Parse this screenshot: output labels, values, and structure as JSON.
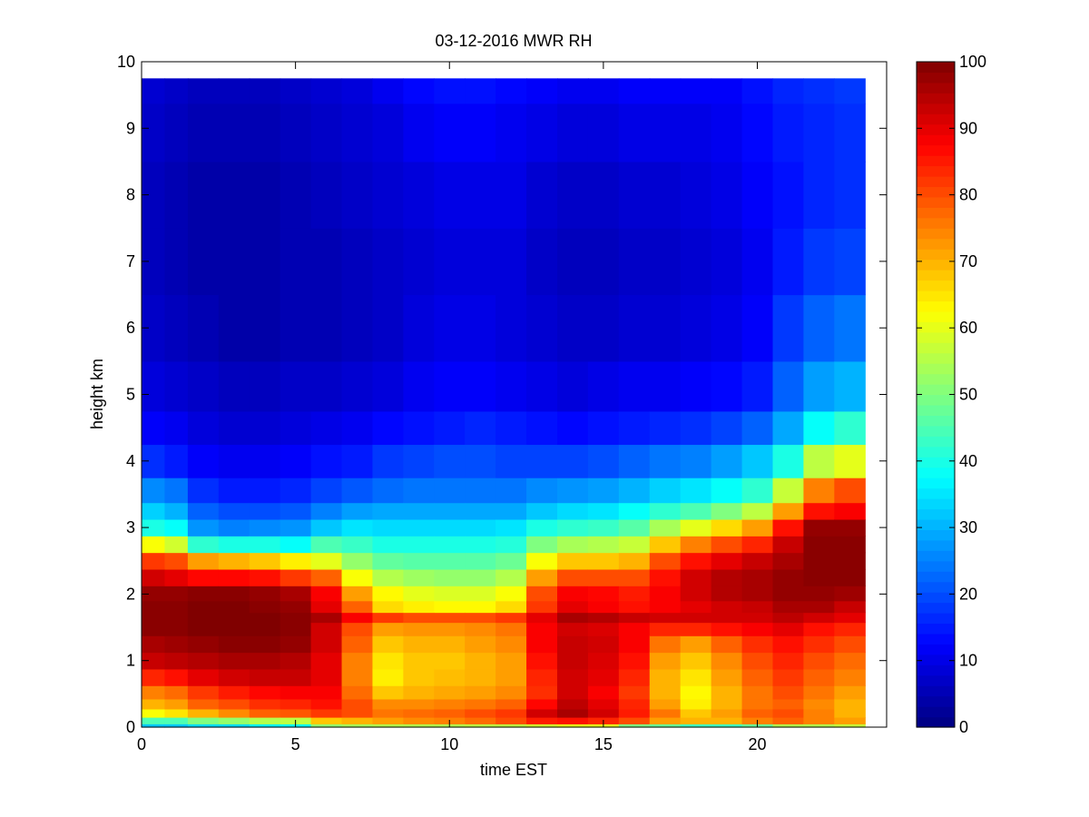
{
  "chart_data": {
    "type": "heatmap",
    "title": "03-12-2016 MWR RH",
    "xlabel": "time EST",
    "ylabel": "height km",
    "xlim": [
      0,
      24.2
    ],
    "ylim": [
      0,
      10
    ],
    "x_ticks": [
      0,
      5,
      10,
      15,
      20
    ],
    "y_ticks": [
      0,
      1,
      2,
      3,
      4,
      5,
      6,
      7,
      8,
      9,
      10
    ],
    "colormap": "jet",
    "color_range": [
      0,
      100
    ],
    "colorbar_ticks": [
      0,
      10,
      20,
      30,
      40,
      50,
      60,
      70,
      80,
      90,
      100
    ],
    "colorbar_placement": "right",
    "time_bins_start": [
      0,
      0.75,
      1.5,
      2.5,
      3.5,
      4.5,
      5.5,
      6.5,
      7.5,
      8.5,
      9.5,
      10.5,
      11.5,
      12.5,
      13.5,
      14.5,
      15.5,
      16.5,
      17.5,
      18.5,
      19.5,
      20.5,
      21.5,
      22.5
    ],
    "time_bins_end": [
      0.75,
      1.5,
      2.5,
      3.5,
      4.5,
      5.5,
      6.5,
      7.5,
      8.5,
      9.5,
      10.5,
      11.5,
      12.5,
      13.5,
      14.5,
      15.5,
      16.5,
      17.5,
      18.5,
      19.5,
      20.5,
      21.5,
      22.5,
      23.5
    ],
    "profile_heights_km": [
      0.0,
      0.1,
      0.2,
      0.35,
      0.5,
      0.75,
      1.0,
      1.25,
      1.5,
      1.65,
      1.8,
      2.0,
      2.25,
      2.5,
      2.75,
      3.0,
      3.25,
      3.5,
      4.0,
      4.5,
      5.0,
      6.0,
      7.0,
      8.0,
      9.0,
      9.75
    ],
    "rh_values_by_time": [
      [
        32,
        45,
        62,
        70,
        75,
        84,
        93,
        96,
        99,
        99,
        99,
        98,
        92,
        82,
        62,
        40,
        33,
        26,
        17,
        12,
        9,
        7,
        6,
        6,
        7,
        8
      ],
      [
        32,
        45,
        65,
        72,
        77,
        86,
        94,
        97,
        99,
        99,
        99,
        98,
        90,
        80,
        58,
        38,
        30,
        24,
        15,
        11,
        8,
        6,
        5,
        5,
        6,
        7
      ],
      [
        34,
        50,
        70,
        78,
        82,
        90,
        95,
        98,
        100,
        100,
        100,
        99,
        87,
        72,
        42,
        27,
        22,
        17,
        12,
        9,
        7,
        5,
        4,
        4,
        5,
        6
      ],
      [
        34,
        52,
        74,
        80,
        85,
        92,
        96,
        99,
        100,
        100,
        100,
        99,
        87,
        70,
        40,
        25,
        20,
        15,
        11,
        8,
        6,
        4,
        4,
        4,
        5,
        6
      ],
      [
        36,
        55,
        78,
        83,
        87,
        93,
        96,
        99,
        100,
        100,
        99,
        98,
        86,
        68,
        40,
        26,
        20,
        15,
        11,
        8,
        6,
        4,
        4,
        4,
        5,
        6
      ],
      [
        37,
        56,
        79,
        84,
        88,
        93,
        95,
        98,
        99,
        99,
        98,
        96,
        82,
        64,
        38,
        27,
        21,
        16,
        12,
        9,
        7,
        5,
        5,
        5,
        6,
        7
      ],
      [
        52,
        68,
        82,
        86,
        88,
        90,
        90,
        92,
        92,
        96,
        90,
        88,
        78,
        60,
        45,
        32,
        25,
        19,
        14,
        10,
        7,
        5,
        5,
        6,
        7,
        8
      ],
      [
        54,
        70,
        80,
        80,
        77,
        75,
        75,
        78,
        80,
        88,
        78,
        72,
        62,
        52,
        43,
        35,
        28,
        21,
        15,
        11,
        8,
        6,
        6,
        7,
        8,
        9
      ],
      [
        55,
        72,
        76,
        74,
        68,
        64,
        65,
        68,
        72,
        82,
        66,
        63,
        55,
        47,
        40,
        34,
        29,
        23,
        18,
        13,
        9,
        7,
        7,
        8,
        9,
        11
      ],
      [
        55,
        74,
        77,
        74,
        70,
        68,
        68,
        70,
        73,
        80,
        64,
        60,
        53,
        46,
        40,
        34,
        29,
        24,
        19,
        14,
        11,
        9,
        8,
        9,
        11,
        13
      ],
      [
        55,
        75,
        78,
        75,
        71,
        69,
        68,
        70,
        73,
        80,
        63,
        59,
        52,
        46,
        40,
        34,
        29,
        24,
        20,
        15,
        12,
        10,
        9,
        10,
        12,
        14
      ],
      [
        56,
        77,
        80,
        76,
        72,
        70,
        70,
        72,
        74,
        80,
        63,
        59,
        52,
        46,
        40,
        34,
        29,
        24,
        20,
        16,
        12,
        10,
        9,
        10,
        12,
        14
      ],
      [
        56,
        80,
        82,
        78,
        74,
        72,
        72,
        74,
        76,
        82,
        66,
        62,
        55,
        48,
        41,
        35,
        29,
        24,
        19,
        15,
        11,
        9,
        9,
        10,
        11,
        13
      ],
      [
        58,
        85,
        92,
        87,
        83,
        84,
        86,
        88,
        88,
        90,
        82,
        80,
        72,
        62,
        50,
        40,
        32,
        26,
        19,
        14,
        10,
        8,
        7,
        8,
        10,
        12
      ],
      [
        60,
        86,
        96,
        94,
        92,
        92,
        93,
        93,
        92,
        96,
        90,
        88,
        80,
        68,
        54,
        42,
        34,
        27,
        19,
        13,
        9,
        7,
        6,
        7,
        9,
        11
      ],
      [
        60,
        84,
        92,
        90,
        88,
        90,
        91,
        92,
        91,
        95,
        88,
        87,
        80,
        68,
        55,
        43,
        35,
        28,
        20,
        14,
        10,
        7,
        6,
        7,
        9,
        11
      ],
      [
        50,
        80,
        85,
        84,
        82,
        84,
        86,
        88,
        88,
        93,
        86,
        85,
        80,
        70,
        57,
        46,
        38,
        30,
        22,
        15,
        11,
        8,
        7,
        8,
        10,
        12
      ],
      [
        48,
        72,
        76,
        72,
        70,
        70,
        72,
        76,
        84,
        92,
        88,
        88,
        86,
        80,
        68,
        54,
        42,
        33,
        24,
        16,
        11,
        8,
        7,
        8,
        10,
        12
      ],
      [
        44,
        70,
        68,
        64,
        63,
        65,
        68,
        72,
        84,
        92,
        90,
        92,
        92,
        86,
        75,
        60,
        45,
        35,
        25,
        17,
        12,
        9,
        8,
        9,
        10,
        12
      ],
      [
        44,
        70,
        72,
        70,
        70,
        72,
        74,
        78,
        86,
        92,
        92,
        95,
        95,
        90,
        80,
        66,
        50,
        38,
        28,
        19,
        13,
        10,
        9,
        10,
        11,
        12
      ],
      [
        48,
        75,
        78,
        76,
        76,
        78,
        80,
        83,
        88,
        92,
        93,
        96,
        96,
        93,
        84,
        72,
        56,
        42,
        32,
        22,
        15,
        12,
        11,
        12,
        13,
        14
      ],
      [
        55,
        78,
        80,
        78,
        80,
        82,
        84,
        86,
        90,
        94,
        96,
        98,
        98,
        96,
        93,
        86,
        72,
        57,
        40,
        29,
        22,
        18,
        15,
        14,
        15,
        16
      ],
      [
        55,
        75,
        75,
        74,
        76,
        78,
        80,
        83,
        86,
        92,
        96,
        98,
        99,
        99,
        99,
        98,
        86,
        75,
        56,
        38,
        28,
        22,
        18,
        16,
        16,
        17
      ],
      [
        57,
        72,
        70,
        70,
        72,
        75,
        77,
        80,
        84,
        90,
        93,
        97,
        99,
        99,
        99,
        98,
        88,
        80,
        60,
        42,
        30,
        24,
        19,
        17,
        17,
        18
      ]
    ]
  }
}
